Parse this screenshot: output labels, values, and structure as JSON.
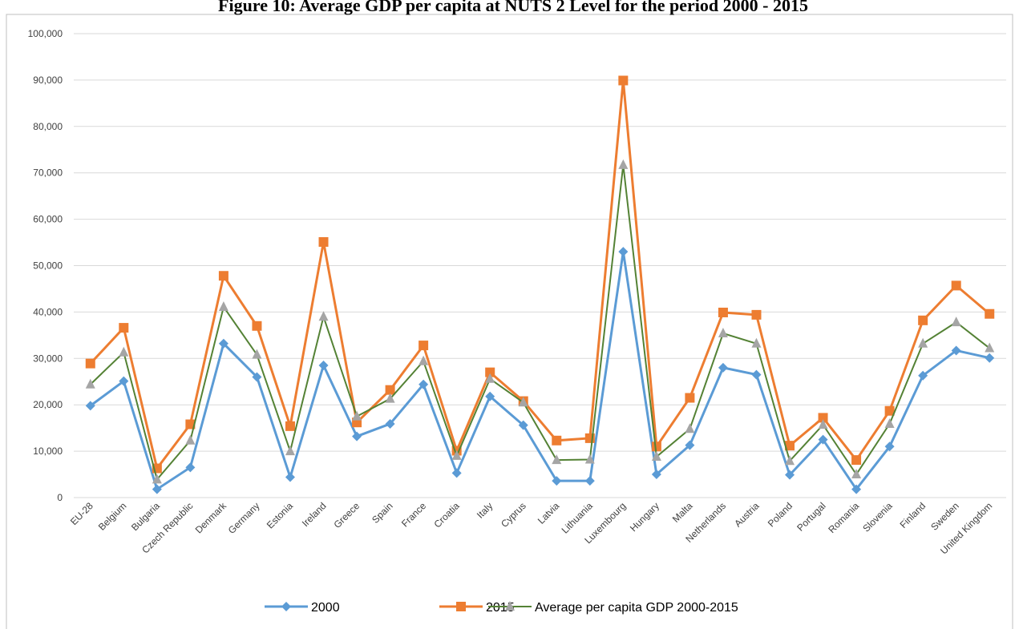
{
  "chart_data": {
    "type": "line",
    "title": "Figure 10: Average GDP per capita at NUTS 2 Level for the period 2000 - 2015",
    "categories": [
      "EU-28",
      "Belgium",
      "Bulgaria",
      "Czech Republic",
      "Denmark",
      "Germany",
      "Estonia",
      "Ireland",
      "Greece",
      "Spain",
      "France",
      "Croatia",
      "Italy",
      "Cyprus",
      "Latvia",
      "Lithuania",
      "Luxembourg",
      "Hungary",
      "Malta",
      "Netherlands",
      "Austria",
      "Poland",
      "Portugal",
      "Romania",
      "Slovenia",
      "Finland",
      "Sweden",
      "United Kingdom"
    ],
    "series": [
      {
        "name": "2000",
        "color": "#5b9bd5",
        "marker": "diamond",
        "values": [
          19800,
          25100,
          1800,
          6500,
          33200,
          26000,
          4400,
          28500,
          13200,
          15900,
          24400,
          5300,
          21800,
          15600,
          3600,
          3600,
          53000,
          5000,
          11300,
          28000,
          26500,
          4900,
          12500,
          1800,
          11000,
          26300,
          31700,
          30100
        ]
      },
      {
        "name": "2015",
        "color": "#ed7d31",
        "marker": "square",
        "values": [
          28900,
          36600,
          6300,
          15800,
          47800,
          37000,
          15400,
          55100,
          16200,
          23200,
          32800,
          10100,
          27000,
          20800,
          12300,
          12800,
          89900,
          11000,
          21500,
          39900,
          39400,
          11200,
          17200,
          8100,
          18700,
          38200,
          45700,
          39600
        ]
      },
      {
        "name": "Average per capita GDP 2000-2015",
        "color": "#548235",
        "marker_color": "#a5a5a5",
        "marker": "triangle",
        "values": [
          24400,
          31300,
          3900,
          12300,
          41100,
          30800,
          10000,
          39000,
          17500,
          21300,
          29400,
          9000,
          25600,
          20500,
          8100,
          8200,
          71700,
          8800,
          14800,
          35400,
          33200,
          7900,
          15700,
          5000,
          15900,
          33200,
          37800,
          32200
        ]
      }
    ],
    "ylim": [
      0,
      100000
    ],
    "yticks": [
      0,
      {
        "value": 10000,
        "label": "10,000"
      },
      {
        "value": 20000,
        "label": "20,000"
      },
      {
        "value": 30000,
        "label": "30,000"
      },
      {
        "value": 40000,
        "label": "40,000"
      },
      {
        "value": 50000,
        "label": "50,000"
      },
      {
        "value": 60000,
        "label": "60,000"
      },
      {
        "value": 70000,
        "label": "70,000"
      },
      {
        "value": 80000,
        "label": "80,000"
      },
      {
        "value": 90000,
        "label": "90,000"
      },
      {
        "value": 100000,
        "label": "100,000"
      }
    ],
    "grid": true,
    "legend": "bottom"
  }
}
